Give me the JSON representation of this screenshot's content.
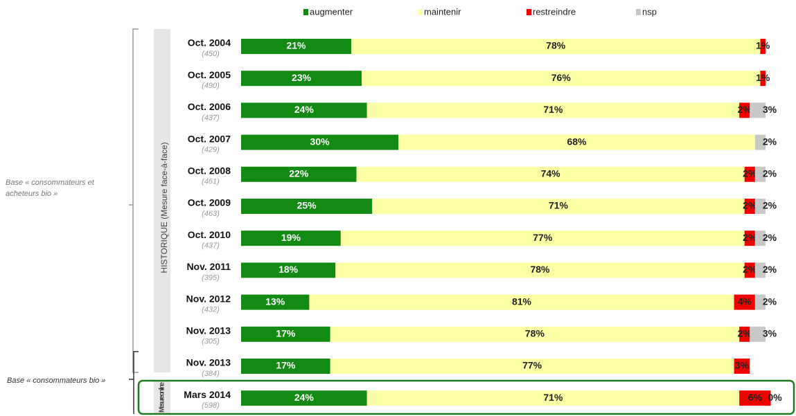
{
  "chart_data": {
    "type": "stacked-bar-horizontal",
    "categories": [
      "Oct. 2004",
      "Oct. 2005",
      "Oct. 2006",
      "Oct. 2007",
      "Oct. 2008",
      "Oct. 2009",
      "Oct. 2010",
      "Nov. 2011",
      "Nov. 2012",
      "Nov. 2013",
      "Nov. 2013",
      "Mars 2014"
    ],
    "bases": [
      "(450)",
      "(490)",
      "(437)",
      "(429)",
      "(461)",
      "(463)",
      "(437)",
      "(395)",
      "(432)",
      "(305)",
      "(384)",
      "(598)"
    ],
    "series": [
      {
        "name": "augmenter",
        "color": "#138a13",
        "values": [
          21,
          23,
          24,
          30,
          22,
          25,
          19,
          18,
          13,
          17,
          17,
          24
        ],
        "value_labels": [
          "21%",
          "23%",
          "24%",
          "30%",
          "22%",
          "25%",
          "19%",
          "18%",
          "13%",
          "17%",
          "17%",
          "24%"
        ]
      },
      {
        "name": "maintenir",
        "color": "#ffffa6",
        "values": [
          78,
          76,
          71,
          68,
          74,
          71,
          77,
          78,
          81,
          78,
          77,
          71
        ],
        "value_labels": [
          "78%",
          "76%",
          "71%",
          "68%",
          "74%",
          "71%",
          "77%",
          "78%",
          "81%",
          "78%",
          "77%",
          "71%"
        ]
      },
      {
        "name": "restreindre",
        "color": "#f00000",
        "values": [
          1,
          1,
          2,
          null,
          2,
          2,
          2,
          2,
          4,
          2,
          3,
          6
        ],
        "value_labels": [
          "1%",
          "1%",
          "2%",
          null,
          "2%",
          "2%",
          "2%",
          "2%",
          "4%",
          "2%",
          "3%",
          "6%"
        ]
      },
      {
        "name": "nsp",
        "color": "#c8c8c8",
        "values": [
          null,
          null,
          3,
          2,
          2,
          2,
          2,
          2,
          2,
          3,
          null,
          0
        ],
        "value_labels": [
          null,
          null,
          "3%",
          "2%",
          "2%",
          "2%",
          "2%",
          "2%",
          "2%",
          "3%",
          null,
          "0%"
        ]
      }
    ],
    "group_labels": [
      "HISTORIQUE (Mesure face-à-face)",
      "Mesure on line"
    ],
    "base_labels": [
      "Base « consommateurs et acheteurs bio »",
      "Base « consommateurs bio »"
    ]
  }
}
